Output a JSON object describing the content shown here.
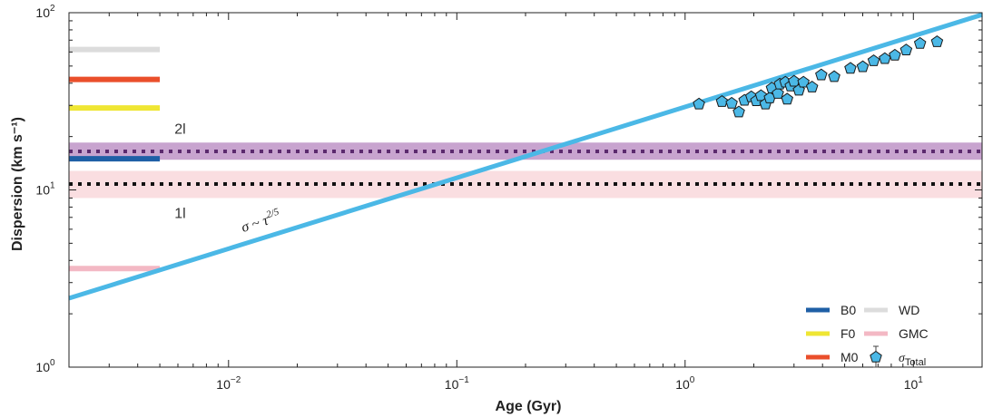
{
  "chart_data": {
    "type": "line",
    "xlabel": "Age (Gyr)",
    "ylabel": "Dispersion (km s⁻¹)",
    "xscale": "log",
    "yscale": "log",
    "xlim": [
      0.002,
      20
    ],
    "ylim": [
      1,
      100
    ],
    "x_ticks": [
      {
        "value": 0.01,
        "base": "10",
        "exp": "−2"
      },
      {
        "value": 0.1,
        "base": "10",
        "exp": "−1"
      },
      {
        "value": 1,
        "base": "10",
        "exp": "0"
      },
      {
        "value": 10,
        "base": "10",
        "exp": "1"
      }
    ],
    "y_ticks": [
      {
        "value": 1,
        "base": "10",
        "exp": "0"
      },
      {
        "value": 10,
        "base": "10",
        "exp": "1"
      },
      {
        "value": 100,
        "base": "10",
        "exp": "2"
      }
    ],
    "power_law": {
      "label_prefix": "σ ~ τ",
      "label_exp": "2/5",
      "coefficient": 29.4,
      "exponent": 0.4,
      "x_range": [
        0.002,
        20
      ],
      "color": "#4bb8e6"
    },
    "bands": [
      {
        "label": "2l",
        "center": 16.5,
        "low": 14.8,
        "high": 18.5,
        "fill": "#9b5aa8",
        "opacity": 0.55,
        "dot_color": "#5b2a6e"
      },
      {
        "label": "1l",
        "center": 10.8,
        "low": 9.0,
        "high": 12.8,
        "fill": "#f6c3c9",
        "opacity": 0.55,
        "dot_color": "#111111"
      }
    ],
    "reference_lines": [
      {
        "name": "WD",
        "value": 62,
        "color": "#dcdcdc"
      },
      {
        "name": "M0",
        "value": 42,
        "color": "#ea4f2b"
      },
      {
        "name": "F0",
        "value": 29,
        "color": "#efe633"
      },
      {
        "name": "B0",
        "value": 15,
        "color": "#1f5fa6"
      },
      {
        "name": "GMC",
        "value": 3.6,
        "color": "#f3b8c4"
      }
    ],
    "reference_x_range": [
      0.002,
      0.005
    ],
    "series": [
      {
        "name": "σTotal",
        "marker": "pentagon",
        "color": "#4bb8e6",
        "points": [
          {
            "x": 1.15,
            "y": 30.5
          },
          {
            "x": 1.45,
            "y": 31.5
          },
          {
            "x": 1.6,
            "y": 30.8
          },
          {
            "x": 1.72,
            "y": 27.5
          },
          {
            "x": 1.82,
            "y": 32.0
          },
          {
            "x": 1.95,
            "y": 33.5
          },
          {
            "x": 2.05,
            "y": 31.8
          },
          {
            "x": 2.15,
            "y": 34.0
          },
          {
            "x": 2.25,
            "y": 30.5
          },
          {
            "x": 2.35,
            "y": 33.0
          },
          {
            "x": 2.4,
            "y": 37.5
          },
          {
            "x": 2.55,
            "y": 35.0
          },
          {
            "x": 2.6,
            "y": 39.5
          },
          {
            "x": 2.75,
            "y": 40.5
          },
          {
            "x": 2.9,
            "y": 38.5
          },
          {
            "x": 2.8,
            "y": 32.5
          },
          {
            "x": 3.0,
            "y": 41.0
          },
          {
            "x": 3.15,
            "y": 36.5
          },
          {
            "x": 3.3,
            "y": 40.5
          },
          {
            "x": 3.6,
            "y": 38.0
          },
          {
            "x": 3.95,
            "y": 44.5
          },
          {
            "x": 4.5,
            "y": 43.5
          },
          {
            "x": 5.3,
            "y": 48.5
          },
          {
            "x": 6.0,
            "y": 49.5
          },
          {
            "x": 6.7,
            "y": 53.5
          },
          {
            "x": 7.5,
            "y": 55.0
          },
          {
            "x": 8.3,
            "y": 57.5
          },
          {
            "x": 9.3,
            "y": 61.5
          },
          {
            "x": 10.7,
            "y": 67.0
          },
          {
            "x": 12.7,
            "y": 68.5
          }
        ]
      }
    ],
    "legend": {
      "placement": "bottom-right",
      "items": [
        {
          "name": "B0",
          "kind": "line",
          "color": "#1f5fa6"
        },
        {
          "name": "F0",
          "kind": "line",
          "color": "#efe633"
        },
        {
          "name": "M0",
          "kind": "line",
          "color": "#ea4f2b"
        },
        {
          "name": "WD",
          "kind": "line",
          "color": "#dcdcdc"
        },
        {
          "name": "GMC",
          "kind": "line",
          "color": "#f3b8c4"
        },
        {
          "name": "σ",
          "sub": "Total",
          "kind": "marker",
          "color": "#4bb8e6"
        }
      ]
    }
  }
}
